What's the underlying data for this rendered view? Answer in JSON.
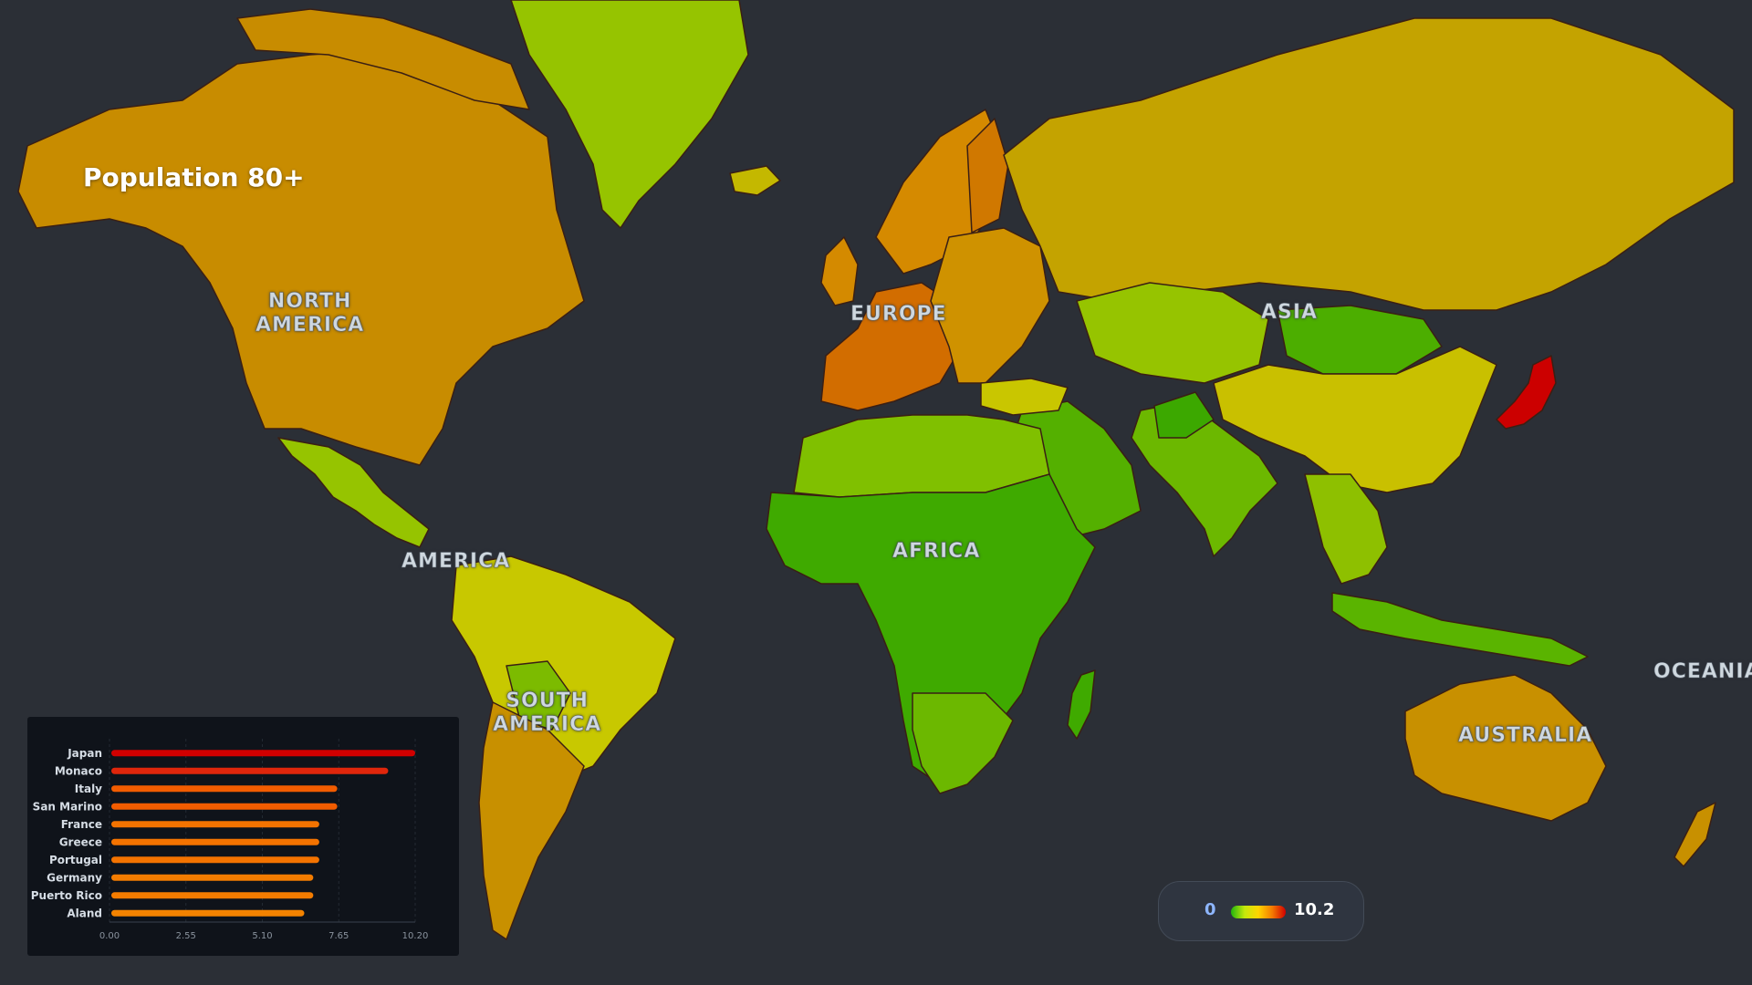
{
  "map": {
    "title": "Population 80+",
    "regions": [
      {
        "id": "north-america",
        "label": "NORTH\nAMERICA"
      },
      {
        "id": "america",
        "label": "AMERICA"
      },
      {
        "id": "south-america",
        "label": "SOUTH\nAMERICA"
      },
      {
        "id": "europe",
        "label": "EUROPE"
      },
      {
        "id": "asia",
        "label": "ASIA"
      },
      {
        "id": "africa",
        "label": "AFRICA"
      },
      {
        "id": "australia",
        "label": "AUSTRALIA"
      },
      {
        "id": "oceania",
        "label": "OCEANIA"
      }
    ],
    "colors": {
      "background": "#2b2f36",
      "ocean": "#2b2f36",
      "border": "#3a2a20"
    }
  },
  "legend": {
    "min": "0",
    "max": "10.2",
    "gradient": [
      "#22b40e",
      "#c4e80c",
      "#ffd500",
      "#f47c00",
      "#d10000"
    ]
  },
  "chart_data": {
    "type": "bar",
    "orientation": "horizontal",
    "categories": [
      "Japan",
      "Monaco",
      "Italy",
      "San Marino",
      "France",
      "Greece",
      "Portugal",
      "Germany",
      "Puerto Rico",
      "Aland"
    ],
    "values": [
      10.2,
      9.3,
      7.6,
      7.6,
      7.0,
      7.0,
      7.0,
      6.8,
      6.8,
      6.5
    ],
    "xlim": [
      0,
      10.2
    ],
    "x_ticks": [
      "0.00",
      "2.55",
      "5.10",
      "7.65",
      "10.20"
    ],
    "colors": [
      "#d10000",
      "#e0260b",
      "#f25c00",
      "#f25c00",
      "#f47300",
      "#f47300",
      "#f47300",
      "#f47c00",
      "#f47c00",
      "#f48300"
    ],
    "grid": true,
    "title": "",
    "xlabel": "",
    "ylabel": ""
  }
}
